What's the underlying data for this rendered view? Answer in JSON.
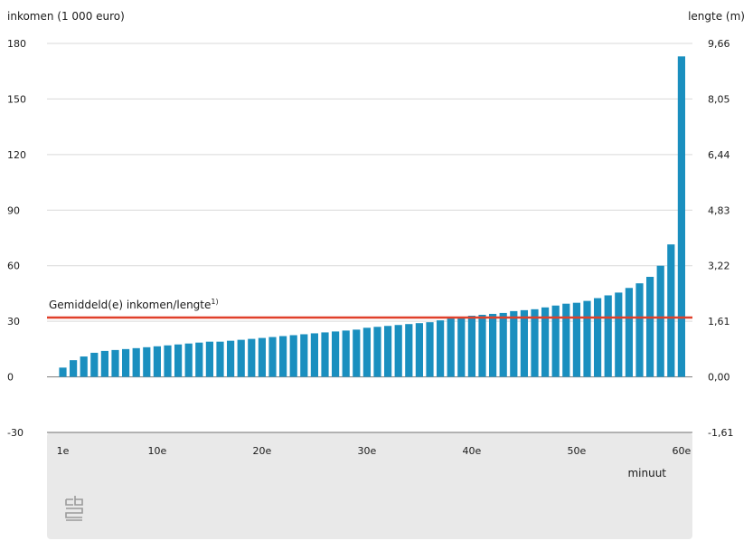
{
  "chart_data": {
    "type": "bar",
    "ylabel_left": "inkomen (1 000 euro)",
    "ylabel_right": "lengte (m)",
    "xlabel": "minuut",
    "ylim": [
      -30,
      180
    ],
    "yticks_left": [
      "180",
      "150",
      "120",
      "90",
      "60",
      "30",
      "0",
      "-30"
    ],
    "yticks_right": [
      "9,66",
      "8,05",
      "6,44",
      "4,83",
      "3,22",
      "1,61",
      "0,00",
      "-1,61"
    ],
    "xticks": [
      "1e",
      "10e",
      "20e",
      "30e",
      "40e",
      "50e",
      "60e"
    ],
    "xtick_positions": [
      1,
      10,
      20,
      30,
      40,
      50,
      60
    ],
    "categories": [
      "1e",
      "2e",
      "3e",
      "4e",
      "5e",
      "6e",
      "7e",
      "8e",
      "9e",
      "10e",
      "11e",
      "12e",
      "13e",
      "14e",
      "15e",
      "16e",
      "17e",
      "18e",
      "19e",
      "20e",
      "21e",
      "22e",
      "23e",
      "24e",
      "25e",
      "26e",
      "27e",
      "28e",
      "29e",
      "30e",
      "31e",
      "32e",
      "33e",
      "34e",
      "35e",
      "36e",
      "37e",
      "38e",
      "39e",
      "40e",
      "41e",
      "42e",
      "43e",
      "44e",
      "45e",
      "46e",
      "47e",
      "48e",
      "49e",
      "50e",
      "51e",
      "52e",
      "53e",
      "54e",
      "55e",
      "56e",
      "57e",
      "58e",
      "59e",
      "60e"
    ],
    "values": [
      5,
      9,
      11,
      13,
      14,
      14.5,
      15,
      15.5,
      16,
      16.5,
      17,
      17.5,
      18,
      18.5,
      19,
      19,
      19.5,
      20,
      20.5,
      21,
      21.5,
      22,
      22.5,
      23,
      23.5,
      24,
      24.5,
      25,
      25.5,
      26.5,
      27,
      27.5,
      28,
      28.5,
      29,
      29.5,
      30.5,
      31.5,
      32,
      33,
      33.5,
      34,
      34.5,
      35.5,
      36,
      36.5,
      37.5,
      38.5,
      39.5,
      40,
      41,
      42.5,
      44,
      45.5,
      48,
      50.5,
      54,
      60,
      71.5,
      173
    ],
    "reference_line": {
      "label": "Gemiddeld(e) inkomen/lengte",
      "superscript": "1)",
      "value": 32
    },
    "grid": true,
    "colors": {
      "bar": "#1a8fbf",
      "reference_line": "#e0402a",
      "grid": "#d9d9d9",
      "axis_band": "#e9e9e9"
    }
  },
  "footer": {
    "logo_icon": "cbs-logo-icon"
  }
}
